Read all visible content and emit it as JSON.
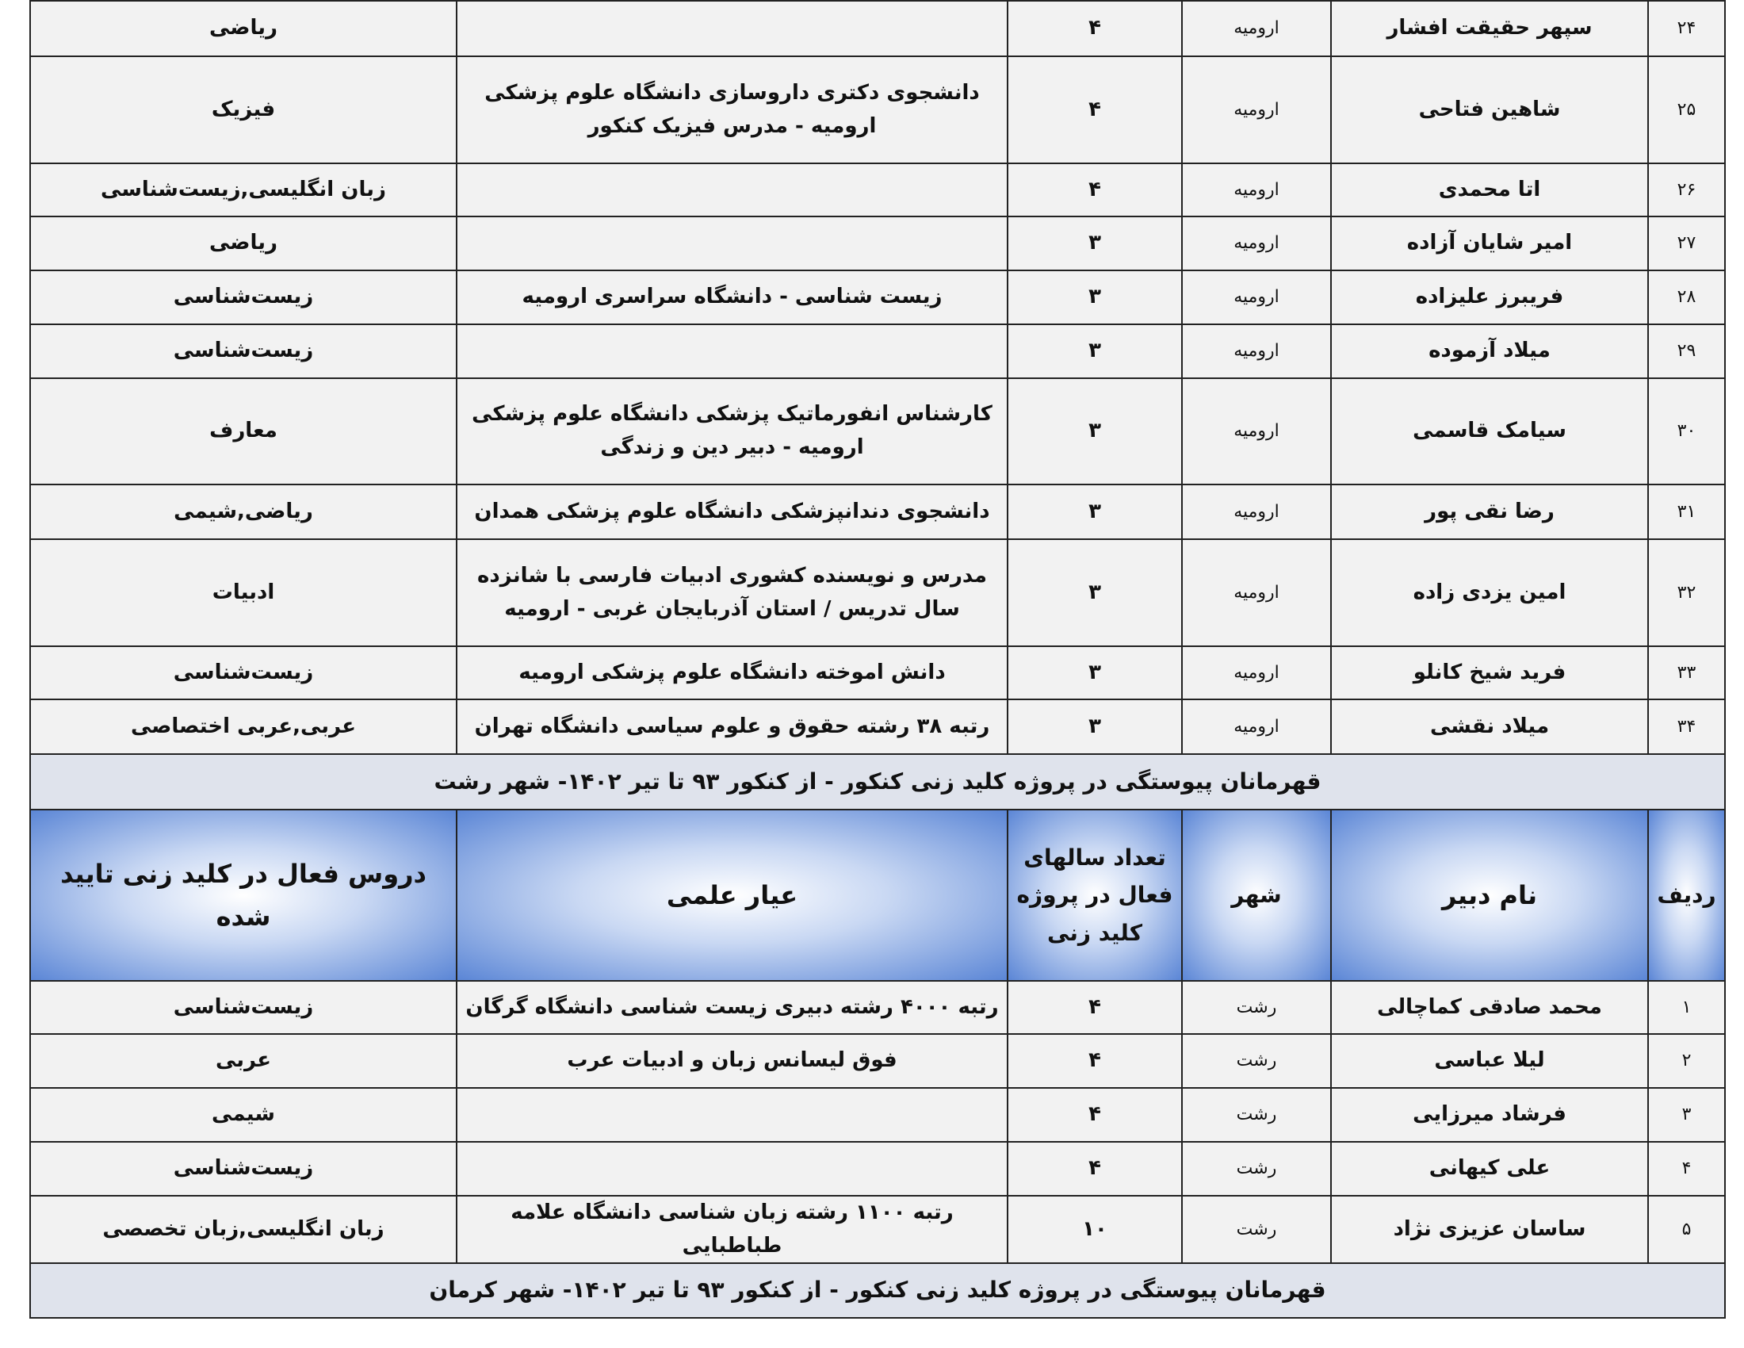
{
  "urmia_rows": [
    {
      "n": "۲۴",
      "name": "سپهر حقیقت افشار",
      "city": "ارومیه",
      "years": "۴",
      "credential": "",
      "subjects": "ریاضی"
    },
    {
      "n": "۲۵",
      "name": "شاهین فتاحی",
      "city": "ارومیه",
      "years": "۴",
      "credential": "دانشجوی دکتری داروسازی دانشگاه علوم پزشکی ارومیه - مدرس فیزیک کنکور",
      "subjects": "فیزیک"
    },
    {
      "n": "۲۶",
      "name": "اتا محمدی",
      "city": "ارومیه",
      "years": "۴",
      "credential": "",
      "subjects": "زبان انگلیسی,زیست‌شناسی"
    },
    {
      "n": "۲۷",
      "name": "امیر شایان آزاده",
      "city": "ارومیه",
      "years": "۳",
      "credential": "",
      "subjects": "ریاضی"
    },
    {
      "n": "۲۸",
      "name": "فریبرز علیزاده",
      "city": "ارومیه",
      "years": "۳",
      "credential": "زیست شناسی - دانشگاه سراسری ارومیه",
      "subjects": "زیست‌شناسی"
    },
    {
      "n": "۲۹",
      "name": "میلاد آزموده",
      "city": "ارومیه",
      "years": "۳",
      "credential": "",
      "subjects": "زیست‌شناسی"
    },
    {
      "n": "۳۰",
      "name": "سیامک قاسمی",
      "city": "ارومیه",
      "years": "۳",
      "credential": "کارشناس انفورماتیک پزشکی دانشگاه علوم پزشکی ارومیه - دبیر دین و زندگی",
      "subjects": "معارف"
    },
    {
      "n": "۳۱",
      "name": "رضا نقی پور",
      "city": "ارومیه",
      "years": "۳",
      "credential": "دانشجوی دندانپزشکی دانشگاه علوم پزشکی همدان",
      "subjects": "ریاضی,شیمی"
    },
    {
      "n": "۳۲",
      "name": "امین یزدی زاده",
      "city": "ارومیه",
      "years": "۳",
      "credential": "مدرس و نویسنده کشوری ادبیات فارسی با شانزده سال تدریس / استان آذربایجان غربی - ارومیه",
      "subjects": "ادبیات"
    },
    {
      "n": "۳۳",
      "name": "فرید شیخ کانلو",
      "city": "ارومیه",
      "years": "۳",
      "credential": "دانش اموخته دانشگاه علوم پزشکی ارومیه",
      "subjects": "زیست‌شناسی"
    },
    {
      "n": "۳۴",
      "name": "میلاد نقشی",
      "city": "ارومیه",
      "years": "۳",
      "credential": "رتبه ۳۸ رشته حقوق و علوم سیاسی دانشگاه تهران",
      "subjects": "عربی,عربی اختصاصی"
    }
  ],
  "section_rasht": "قهرمانان پیوستگی در پروژه کلید زنی کنکور - از کنکور ۹۳ تا تیر ۱۴۰۲- شهر رشت",
  "headers": {
    "n": "ردیف",
    "name": "نام دبیر",
    "city": "شهر",
    "years": "تعداد سالهای فعال در پروژه کلید زنی",
    "credential": "عیار علمی",
    "subjects": "دروس فعال در کلید زنی تایید شده"
  },
  "rasht_rows": [
    {
      "n": "۱",
      "name": "محمد صادقی کماچالی",
      "city": "رشت",
      "years": "۴",
      "credential": "رتبه ۴۰۰۰ رشته  دبیری زیست شناسی دانشگاه گرگان",
      "subjects": "زیست‌شناسی"
    },
    {
      "n": "۲",
      "name": "لیلا عباسی",
      "city": "رشت",
      "years": "۴",
      "credential": "فوق لیسانس زبان و ادبیات عرب",
      "subjects": "عربی"
    },
    {
      "n": "۳",
      "name": "فرشاد میرزایی",
      "city": "رشت",
      "years": "۴",
      "credential": "",
      "subjects": "شیمی"
    },
    {
      "n": "۴",
      "name": "علی کیهانی",
      "city": "رشت",
      "years": "۴",
      "credential": "",
      "subjects": "زیست‌شناسی"
    },
    {
      "n": "۵",
      "name": "ساسان عزیزی نژاد",
      "city": "رشت",
      "years": "۱۰",
      "credential": "رتبه ۱۱۰۰ رشته زبان شناسی دانشگاه علامه طباطبایی",
      "subjects": "زبان انگلیسی,زبان تخصصی"
    }
  ],
  "section_kerman": "قهرمانان پیوستگی در پروژه کلید زنی کنکور - از کنکور ۹۳ تا تیر ۱۴۰۲- شهر کرمان"
}
